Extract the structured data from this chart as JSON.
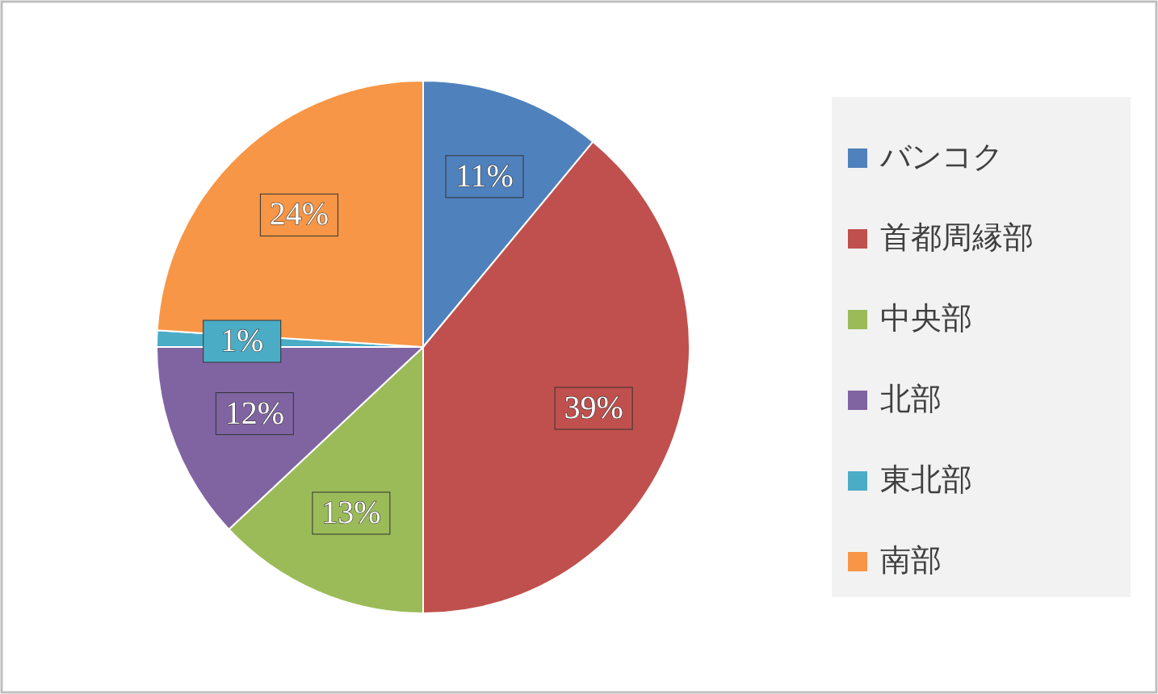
{
  "chart_data": {
    "type": "pie",
    "categories": [
      "バンコク",
      "首都周縁部",
      "中央部",
      "北部",
      "東北部",
      "南部"
    ],
    "values": [
      11,
      39,
      13,
      12,
      1,
      24
    ],
    "colors": [
      "#4f81bd",
      "#c0504d",
      "#9bbb59",
      "#8064a2",
      "#4bacc6",
      "#f79646"
    ],
    "value_labels": [
      "11%",
      "39%",
      "13%",
      "12%",
      "1%",
      "24%"
    ],
    "legend": "right"
  }
}
